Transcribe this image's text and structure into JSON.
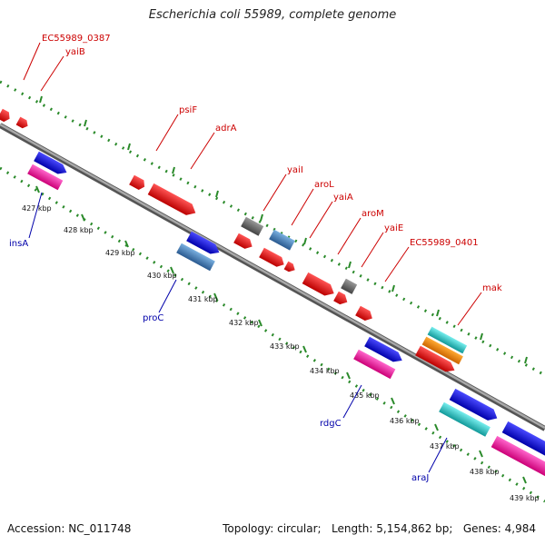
{
  "title": "Escherichia coli 55989, complete genome",
  "ticks": [
    {
      "label": "427 kbp"
    },
    {
      "label": "428 kbp"
    },
    {
      "label": "429 kbp"
    },
    {
      "label": "430 kbp"
    },
    {
      "label": "431 kbp"
    },
    {
      "label": "432 kbp"
    },
    {
      "label": "433 kbp"
    },
    {
      "label": "434 kbp"
    },
    {
      "label": "435 kbp"
    },
    {
      "label": "436 kbp"
    },
    {
      "label": "437 kbp"
    },
    {
      "label": "438 kbp"
    },
    {
      "label": "439 kbp"
    }
  ],
  "genes_forward": [
    "EC55989_0387",
    "yaiB",
    "psiF",
    "adrA",
    "yaiI",
    "aroL",
    "yaiA",
    "aroM",
    "yaiE",
    "EC55989_0401",
    "mak"
  ],
  "genes_reverse": [
    "insA",
    "proC",
    "rdgC",
    "araJ"
  ],
  "colors": {
    "forward_label": "#cc0000",
    "reverse_label": "#0000aa",
    "gene_red": "#ee0000",
    "gene_blue": "#1a1ae0",
    "gene_pink": "#ee2299",
    "gene_gray": "#666666",
    "gene_steel": "#4a86c0",
    "gene_cyan": "#22cccc",
    "gene_orange": "#ee8800",
    "dots": "#2a8a2a",
    "backbone": "#808080"
  },
  "footer": {
    "accession": "Accession: NC_011748",
    "topology": "Topology: circular;   Length: 5,154,862 bp;   Genes: 4,984"
  }
}
